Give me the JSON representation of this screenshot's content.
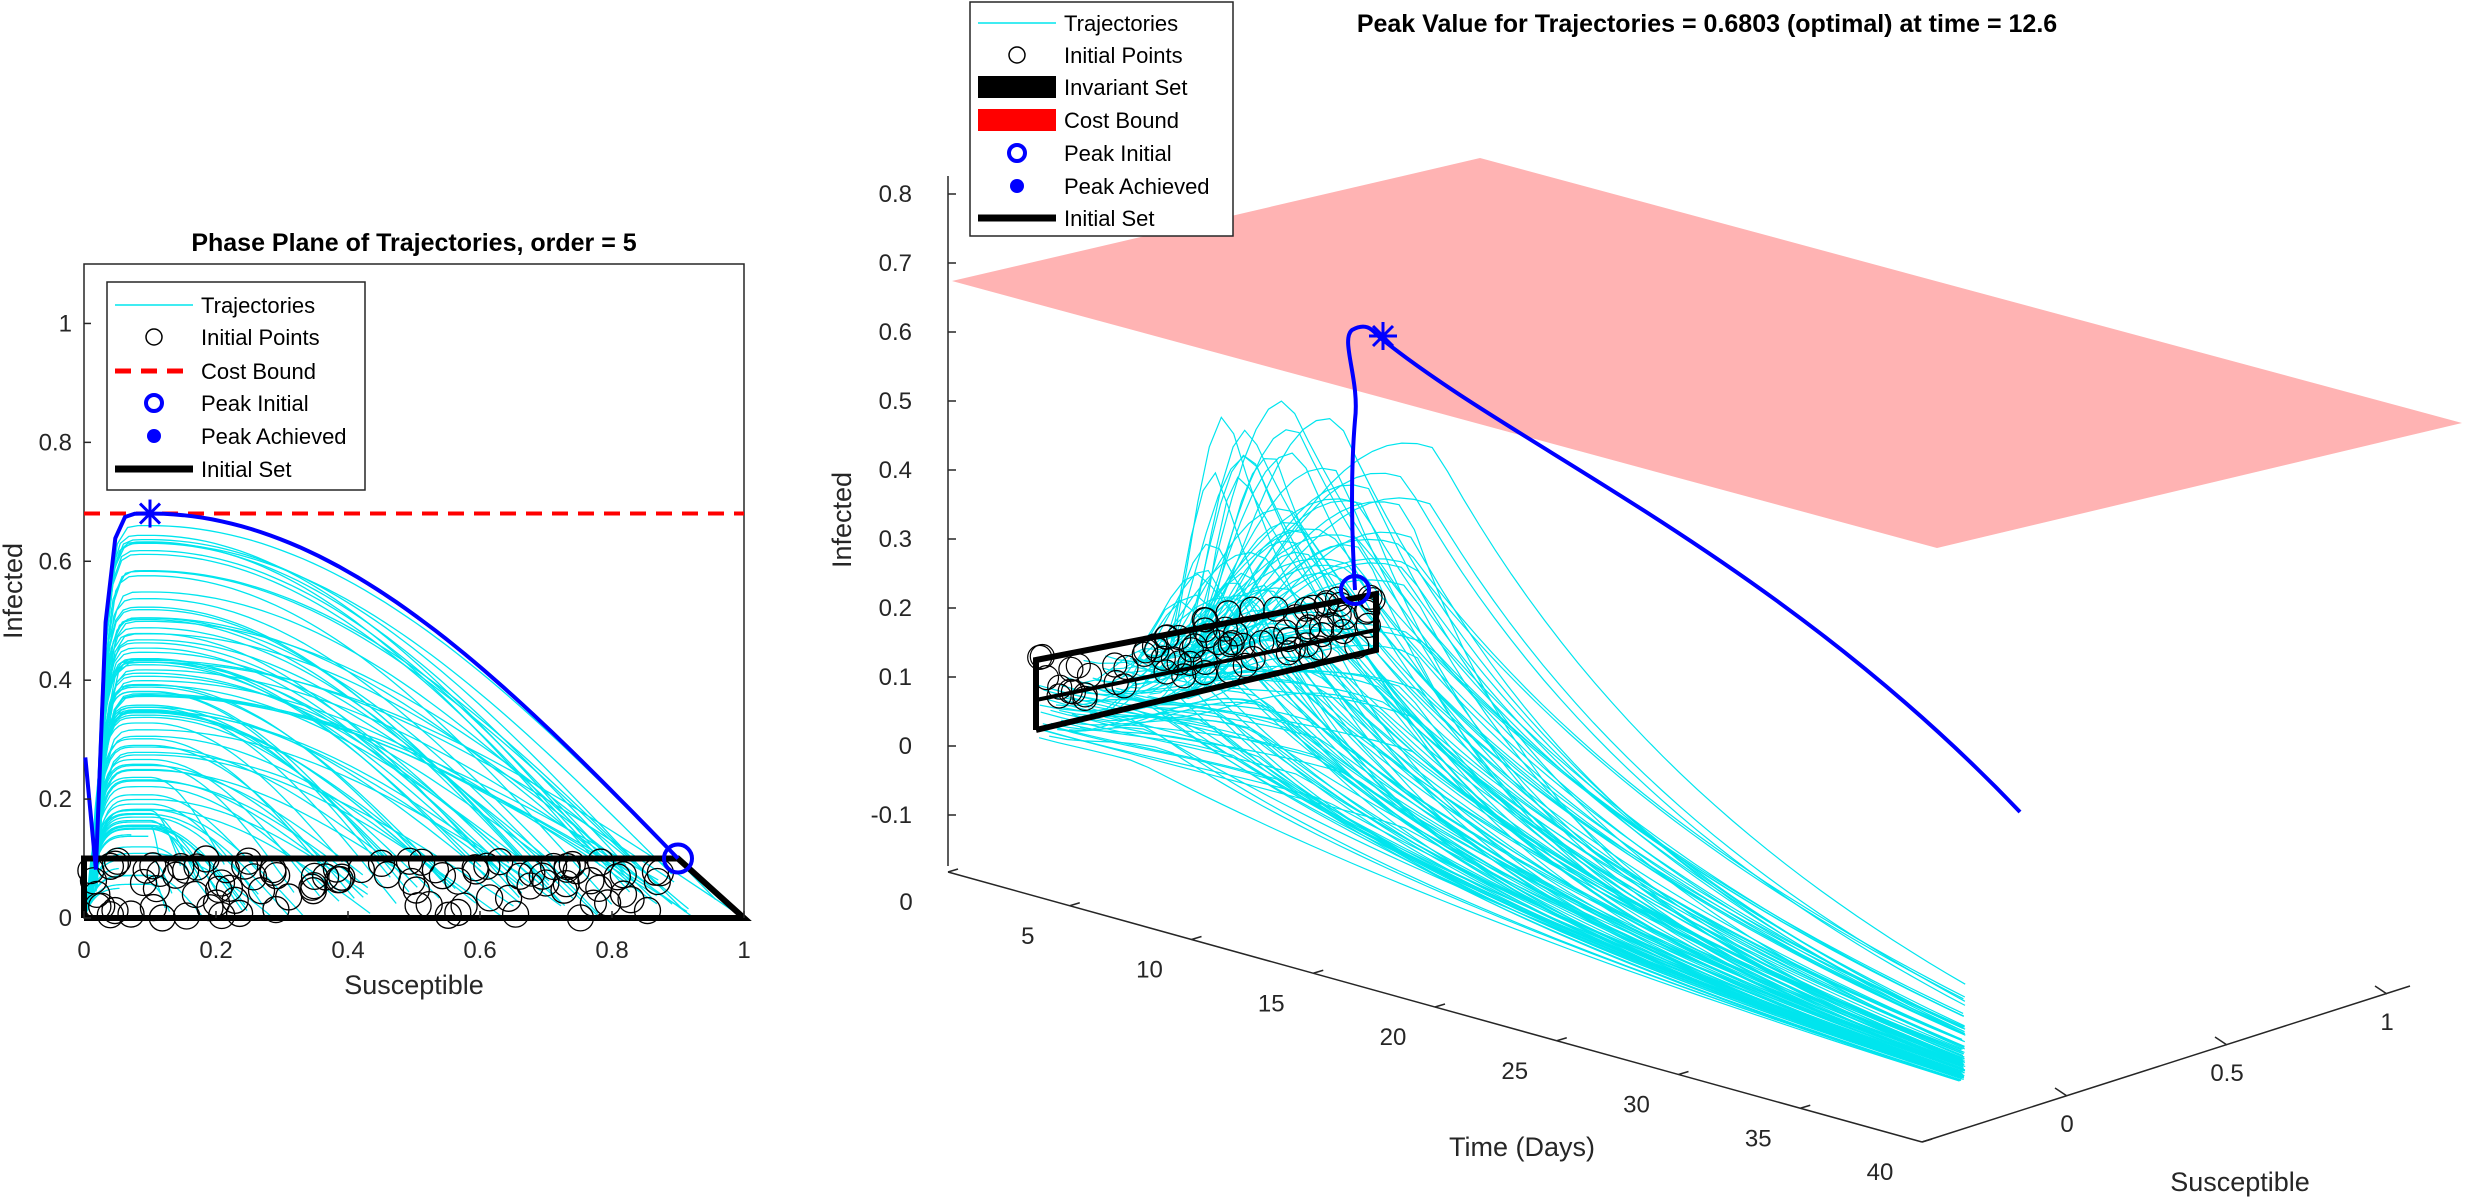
{
  "chart_data": [
    {
      "type": "line",
      "title": "Phase Plane of Trajectories, order = 5",
      "xlabel": "Susceptible",
      "ylabel": "Infected",
      "xlim": [
        0,
        1
      ],
      "ylim": [
        0,
        1.1
      ],
      "xticks": [
        "0",
        "0.2",
        "0.4",
        "0.6",
        "0.8",
        "1"
      ],
      "yticks": [
        "0",
        "0.2",
        "0.4",
        "0.6",
        "0.8",
        "1"
      ],
      "grid": false,
      "legend_position": "top-left",
      "legend": [
        "Trajectories",
        "Initial Points",
        "Cost Bound",
        "Peak Initial",
        "Peak Achieved",
        "Initial Set"
      ],
      "cost_bound": 0.6803,
      "peak_initial": {
        "x": 0.9,
        "y": 0.1
      },
      "peak_achieved": {
        "x": 0.1,
        "y": 0.6803
      },
      "initial_set": [
        [
          0,
          0
        ],
        [
          0,
          0.1
        ],
        [
          0.9,
          0.1
        ],
        [
          1,
          0
        ],
        [
          0,
          0
        ]
      ],
      "trajectory_count": 100,
      "colors": {
        "trajectories": "#00e5ee",
        "initial_points": "#000000",
        "cost_bound": "#ff0000",
        "peak": "#0000ff",
        "initial_set": "#000000"
      }
    },
    {
      "type": "line",
      "title": "Peak Value for Trajectories = 0.6803 (optimal) at time = 12.6",
      "xlabel": "Time (Days)",
      "ylabel": "Infected",
      "zlabel": "Susceptible",
      "xlim": [
        0,
        40
      ],
      "ylim": [
        -0.1,
        0.8
      ],
      "zlim": [
        0,
        1
      ],
      "xticks": [
        "0",
        "5",
        "10",
        "15",
        "20",
        "25",
        "30",
        "35",
        "40"
      ],
      "yticks": [
        "-0.1",
        "0",
        "0.1",
        "0.2",
        "0.3",
        "0.4",
        "0.5",
        "0.6",
        "0.7",
        "0.8"
      ],
      "zticks": [
        "0",
        "0.5",
        "1"
      ],
      "grid": false,
      "legend_position": "top-left",
      "legend": [
        "Trajectories",
        "Initial Points",
        "Invariant Set",
        "Cost Bound",
        "Peak Initial",
        "Peak Achieved",
        "Initial Set"
      ],
      "peak_value": 0.6803,
      "peak_time": 12.6,
      "colors": {
        "trajectories": "#00e5ee",
        "cost_plane": "#ffb3b3",
        "peak": "#0000ff",
        "invariant_set": "#000000"
      }
    }
  ]
}
